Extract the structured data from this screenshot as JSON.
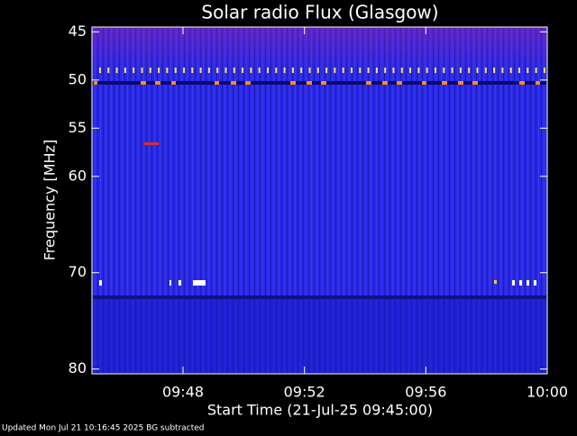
{
  "chart_data": {
    "type": "spectrogram",
    "title": "Solar radio Flux (Glasgow)",
    "y_label": "Frequency [MHz]",
    "x_label": "Start Time (21-Jul-25 09:45:00)",
    "ylim": [
      44.5,
      80.5
    ],
    "yticks": [
      45,
      50,
      55,
      60,
      70,
      80
    ],
    "xlim": [
      "09:45",
      "10:00"
    ],
    "xticks": [
      "09:48",
      "09:52",
      "09:56",
      "10:00"
    ],
    "footer": "Updated Mon Jul 21 10:16:45 2025   BG subtracted"
  }
}
